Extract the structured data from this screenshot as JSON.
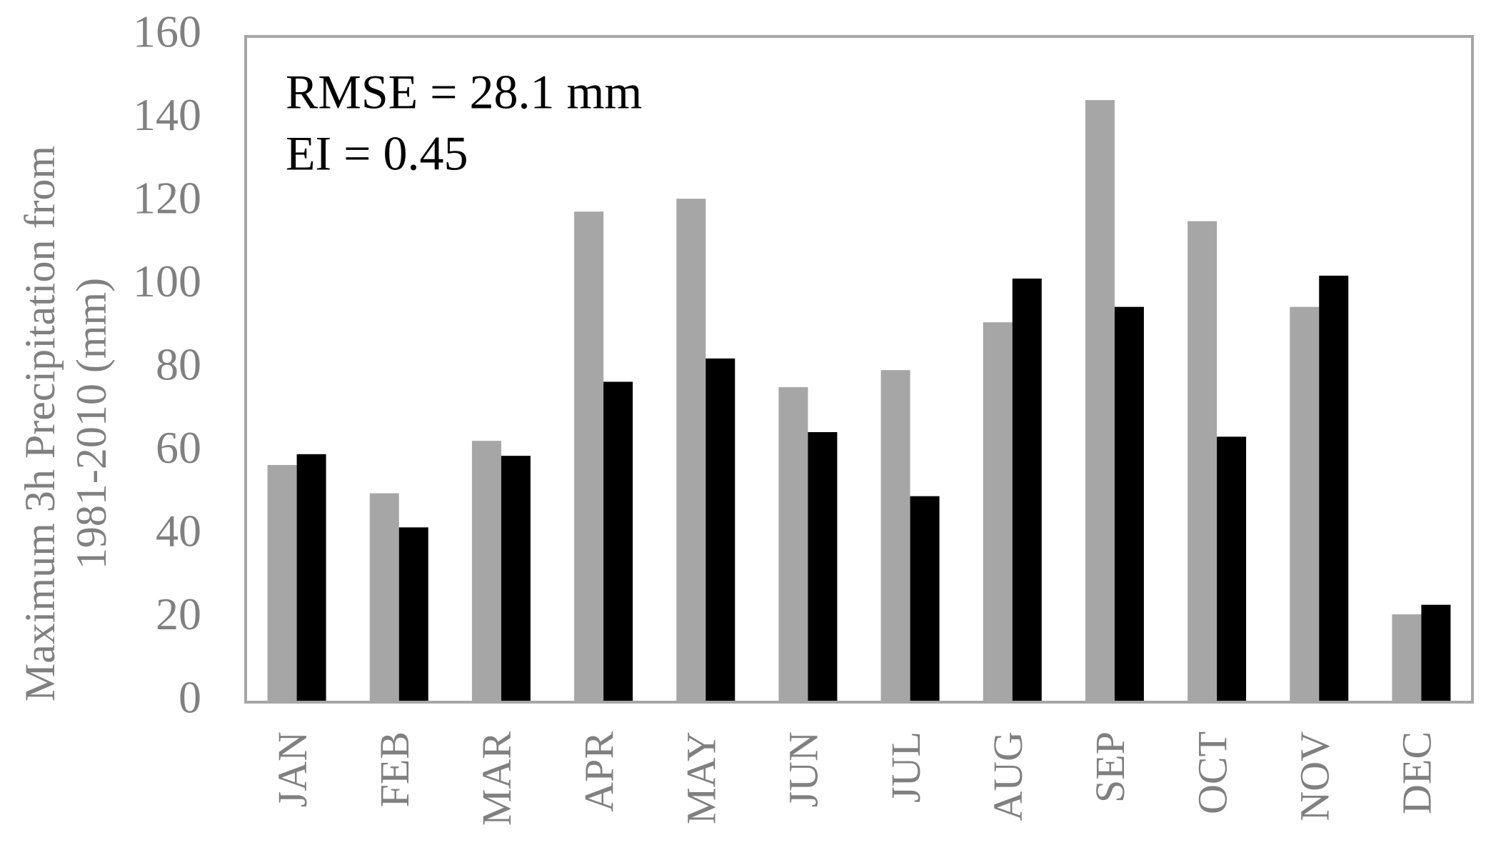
{
  "chart_data": {
    "type": "bar",
    "y_label": [
      "Maximum 3h Precipitation from",
      "1981-2010 (mm)"
    ],
    "annotations": [
      "RMSE = 28.1 mm",
      "EI = 0.45"
    ],
    "categories": [
      "JAN",
      "FEB",
      "MAR",
      "APR",
      "MAY",
      "JUN",
      "JUL",
      "AUG",
      "SEP",
      "OCT",
      "NOV",
      "DEC"
    ],
    "series": [
      {
        "color": "#a6a6a6",
        "values": [
          57,
          50.2,
          62.8,
          117.9,
          121,
          75.7,
          79.8,
          91.3,
          144.7,
          115.6,
          95,
          21.1
        ]
      },
      {
        "color": "#000000",
        "values": [
          59.6,
          42,
          59.2,
          77,
          82.6,
          64.9,
          49.5,
          101.8,
          95,
          63.8,
          102.5,
          23.4
        ]
      }
    ],
    "ylim": [
      0,
      160
    ],
    "yticks": [
      0,
      20,
      40,
      60,
      80,
      100,
      120,
      140,
      160
    ]
  }
}
